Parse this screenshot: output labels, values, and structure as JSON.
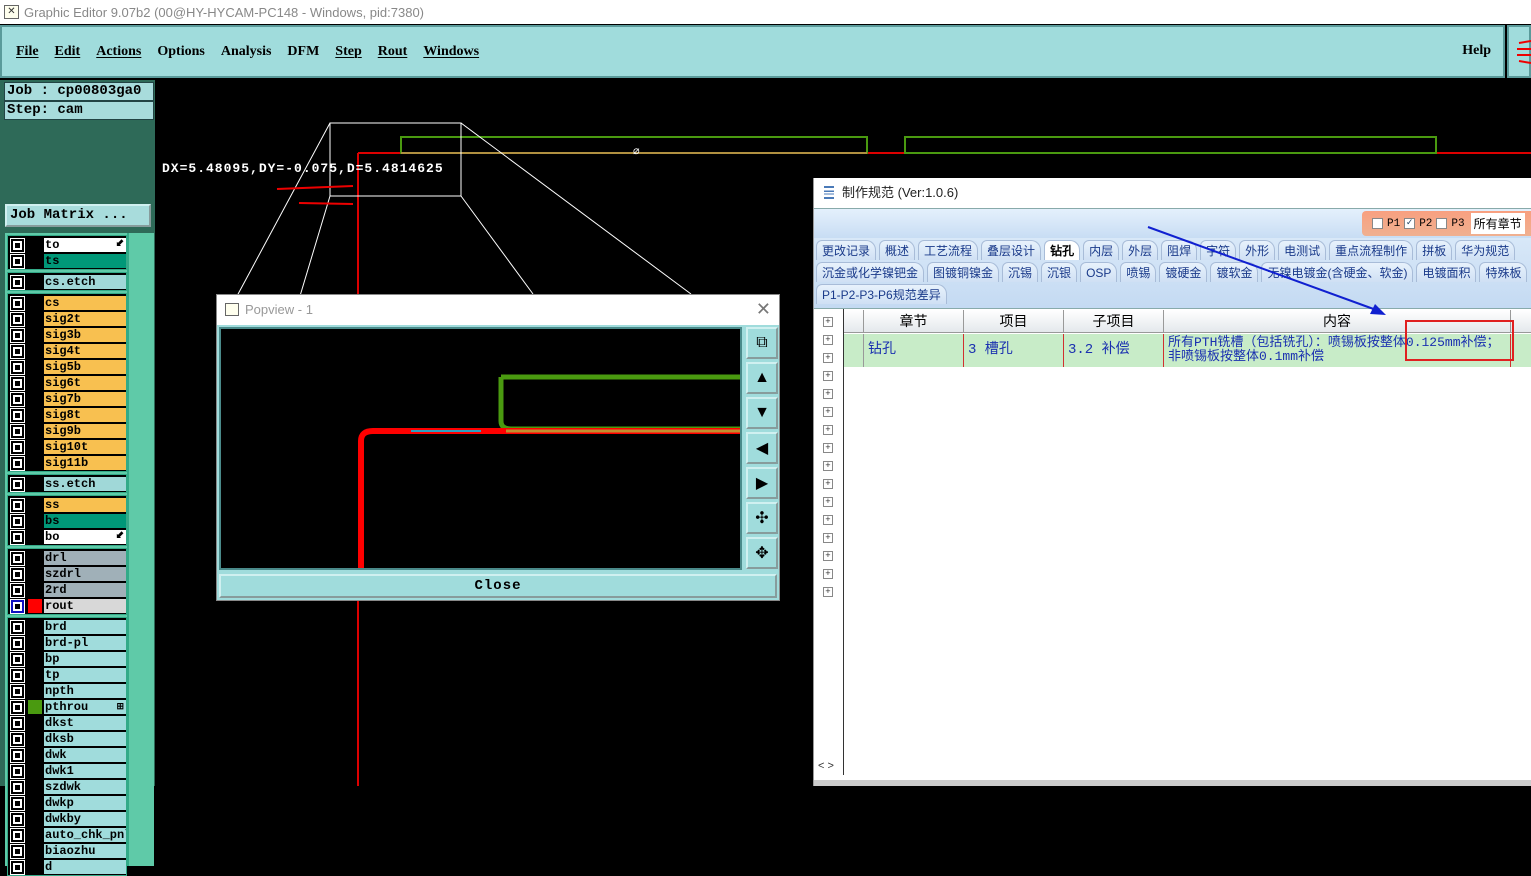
{
  "window": {
    "title": "Graphic Editor 9.07b2 (00@HY-HYCAM-PC148 - Windows, pid:7380)"
  },
  "menu": {
    "items": [
      "File",
      "Edit",
      "Actions",
      "Options",
      "Analysis",
      "DFM",
      "Step",
      "Rout",
      "Windows"
    ],
    "help": "Help"
  },
  "job": {
    "job_label": "Job  : cp00803ga0",
    "step_label": "Step: cam",
    "matrix_button": "Job Matrix ..."
  },
  "layers": [
    {
      "group": [
        {
          "name": "to",
          "color": "#ffffff",
          "arrow": true
        },
        {
          "name": "ts",
          "color": "#009878"
        }
      ]
    },
    {
      "group": [
        {
          "name": "cs.etch",
          "color": "#a0d8d8"
        }
      ]
    },
    {
      "group": [
        {
          "name": "cs",
          "color": "#f8c050"
        },
        {
          "name": "sig2t",
          "color": "#f8c050"
        },
        {
          "name": "sig3b",
          "color": "#f8c050"
        },
        {
          "name": "sig4t",
          "color": "#f8c050"
        },
        {
          "name": "sig5b",
          "color": "#f8c050"
        },
        {
          "name": "sig6t",
          "color": "#f8c050"
        },
        {
          "name": "sig7b",
          "color": "#f8c050"
        },
        {
          "name": "sig8t",
          "color": "#f8c050"
        },
        {
          "name": "sig9b",
          "color": "#f8c050"
        },
        {
          "name": "sig10t",
          "color": "#f8c050"
        },
        {
          "name": "sig11b",
          "color": "#f8c050"
        }
      ]
    },
    {
      "group": [
        {
          "name": "ss.etch",
          "color": "#a0d8d8"
        }
      ]
    },
    {
      "group": [
        {
          "name": "ss",
          "color": "#f8c050"
        },
        {
          "name": "bs",
          "color": "#009878"
        },
        {
          "name": "bo",
          "color": "#ffffff",
          "arrow": true
        }
      ]
    },
    {
      "group": [
        {
          "name": "drl",
          "color": "#a0b0b8"
        },
        {
          "name": "szdrl",
          "color": "#a0b0b8"
        },
        {
          "name": "2rd",
          "color": "#a0b0b8"
        },
        {
          "name": "rout",
          "color": "#d8d8d8",
          "swatch": "#ff0000",
          "active": true
        }
      ]
    },
    {
      "group": [
        {
          "name": "brd",
          "color": "#a0dcdc"
        },
        {
          "name": "brd-pl",
          "color": "#a0dcdc"
        },
        {
          "name": "bp",
          "color": "#a0dcdc"
        },
        {
          "name": "tp",
          "color": "#a0dcdc"
        },
        {
          "name": "npth",
          "color": "#a0dcdc"
        },
        {
          "name": "pthrou",
          "color": "#a0dcdc",
          "swatch": "#4a9a10",
          "mark": true
        },
        {
          "name": "dkst",
          "color": "#a0dcdc"
        },
        {
          "name": "dksb",
          "color": "#a0dcdc"
        },
        {
          "name": "dwk",
          "color": "#a0dcdc"
        },
        {
          "name": "dwk1",
          "color": "#a0dcdc"
        },
        {
          "name": "szdwk",
          "color": "#a0dcdc"
        },
        {
          "name": "dwkp",
          "color": "#a0dcdc"
        },
        {
          "name": "dwkby",
          "color": "#a0dcdc"
        },
        {
          "name": "auto_chk_pnl",
          "color": "#a0dcdc"
        },
        {
          "name": "biaozhu",
          "color": "#a0dcdc"
        },
        {
          "name": "d",
          "color": "#a0dcdc"
        }
      ]
    }
  ],
  "canvas": {
    "measure": "DX=5.48095,DY=-0.075,D=5.4814625"
  },
  "popview": {
    "title": "Popview - 1",
    "close_label": "Close",
    "tools": [
      "zoom-window-icon",
      "pan-up-icon",
      "pan-down-icon",
      "pan-left-icon",
      "pan-right-icon",
      "zoom-in-icon",
      "zoom-out-icon"
    ]
  },
  "spec": {
    "title": "制作规范 (Ver:1.0.6)",
    "filters": [
      {
        "label": "P1",
        "checked": false
      },
      {
        "label": "P2",
        "checked": true
      },
      {
        "label": "P3",
        "checked": false
      }
    ],
    "chapter_select": "所有章节",
    "tabs_row1": [
      "更改记录",
      "概述",
      "工艺流程",
      "叠层设计",
      "钻孔",
      "内层",
      "外层",
      "阻焊",
      "字符",
      "外形",
      "电测试",
      "重点流程制作",
      "拼板",
      "华为规范"
    ],
    "active_tab": "钻孔",
    "tabs_row2": [
      "沉金或化学镍钯金",
      "图镀铜镍金",
      "沉锡",
      "沉银",
      "OSP",
      "喷锡",
      "镀硬金",
      "镀软金",
      "无镍电镀金(含硬金、软金)",
      "电镀面积",
      "特殊板"
    ],
    "tabs_row3": [
      "P1-P2-P3-P6规范差异"
    ],
    "columns": [
      "章节",
      "项目",
      "子项目",
      "内容"
    ],
    "rows": [
      {
        "chapter": "钻孔",
        "item": "3 槽孔",
        "subitem": "3.2 补偿",
        "content": "所有PTH铣槽（包括铣孔）：喷锡板按整体0.125mm补偿；非喷锡板按整体0.1mm补偿"
      }
    ],
    "scroll_arrows": "< >",
    "accent": "#c8ecc8",
    "annotation_arrow_color": "#1020d0",
    "highlight_box_color": "#e02020"
  }
}
